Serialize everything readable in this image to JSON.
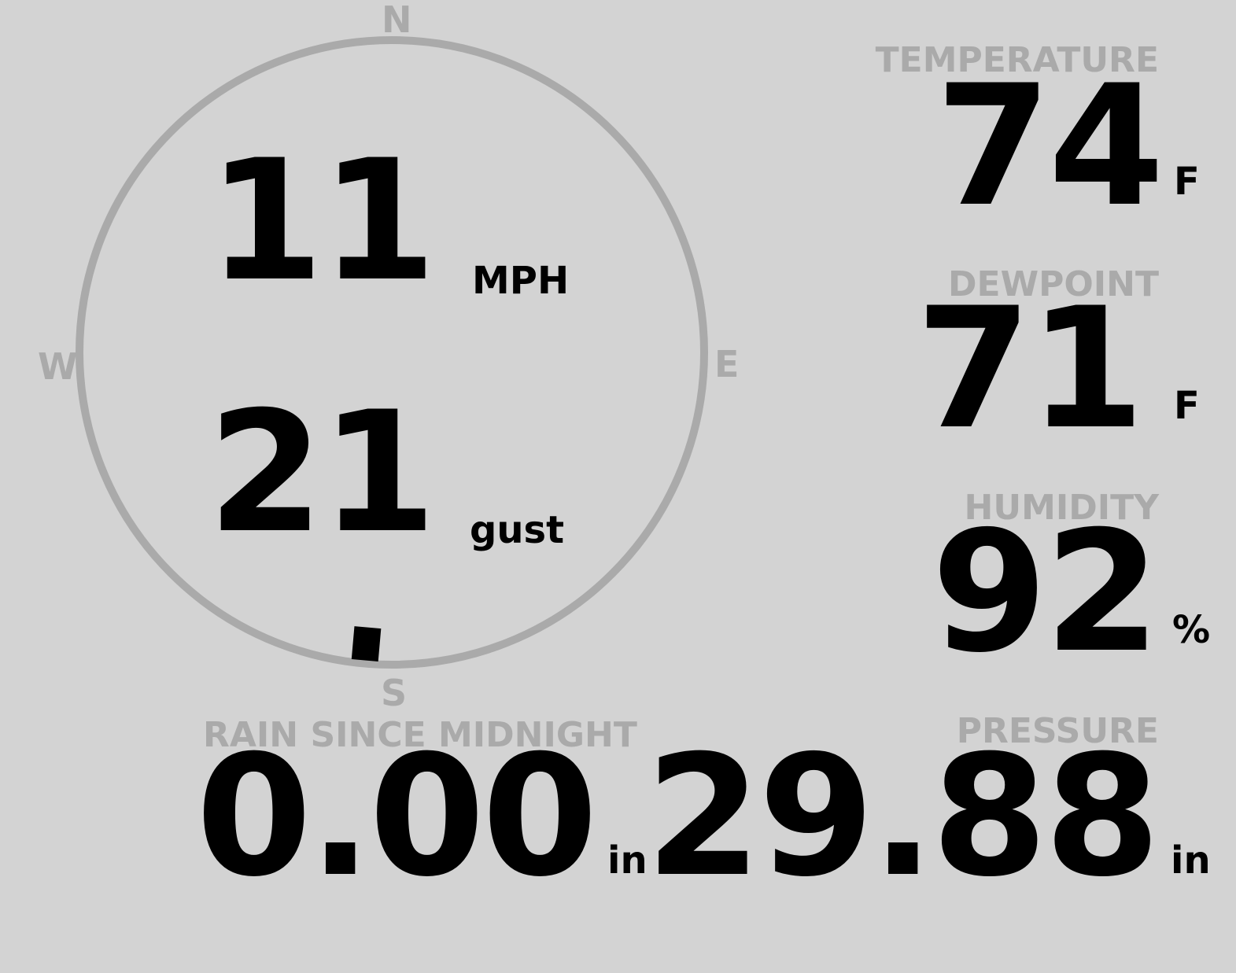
{
  "wind": {
    "speed": "11",
    "speed_unit": "MPH",
    "gust": "21",
    "gust_unit": "gust",
    "direction_degrees": 185,
    "cardinals": {
      "n": "N",
      "e": "E",
      "s": "S",
      "w": "W"
    }
  },
  "temperature": {
    "label": "TEMPERATURE",
    "value": "74",
    "unit": "F"
  },
  "dewpoint": {
    "label": "DEWPOINT",
    "value": "71",
    "unit": "F"
  },
  "humidity": {
    "label": "HUMIDITY",
    "value": "92",
    "unit": "%"
  },
  "rain": {
    "label": "RAIN SINCE MIDNIGHT",
    "value": "0.00",
    "unit": "in"
  },
  "pressure": {
    "label": "PRESSURE",
    "value": "29.88",
    "unit": "in"
  },
  "colors": {
    "background": "#d3d3d3",
    "muted": "#aaaaaa",
    "value": "#000000"
  }
}
